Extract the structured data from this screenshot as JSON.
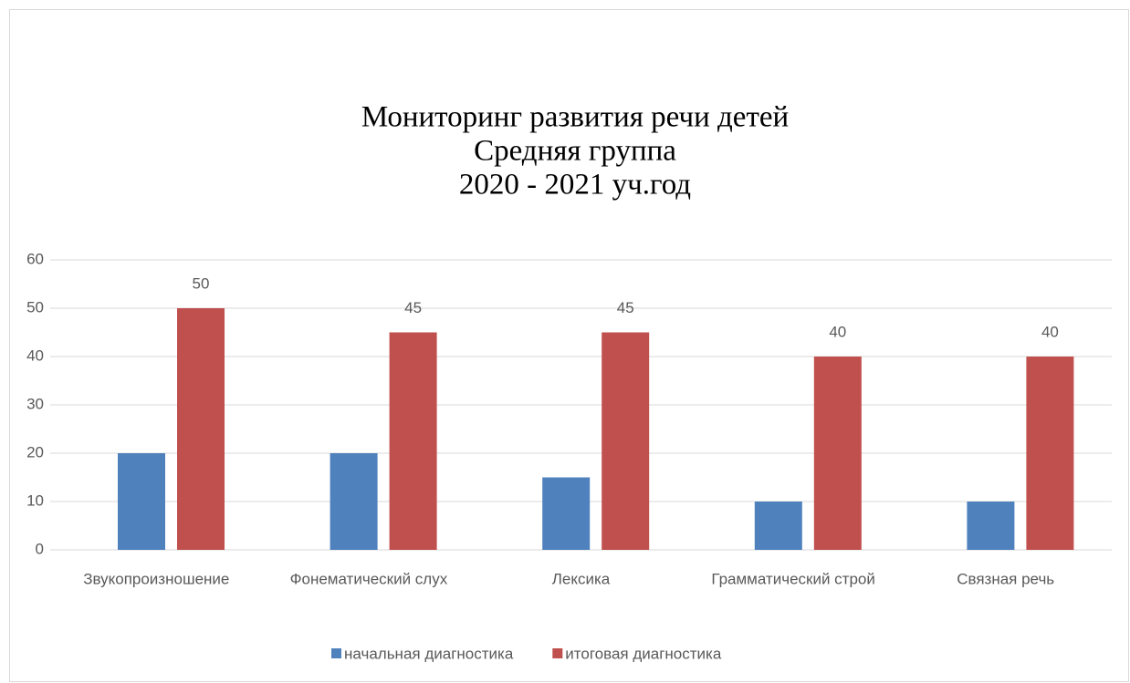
{
  "chart_data": {
    "type": "bar",
    "title": [
      "Мониторинг развития речи детей",
      "Средняя группа",
      "2020 - 2021 уч.год"
    ],
    "categories": [
      "Звукопроизношение",
      "Фонематический слух",
      "Лексика",
      "Грамматический строй",
      "Связная речь"
    ],
    "series": [
      {
        "name": "начальная диагностика",
        "color": "#4f81bd",
        "values": [
          20,
          20,
          15,
          10,
          10
        ]
      },
      {
        "name": "итоговая диагностика",
        "color": "#c0504d",
        "values": [
          50,
          45,
          45,
          40,
          40
        ],
        "data_labels": true
      }
    ],
    "ylim": [
      0,
      60
    ],
    "yticks": [
      0,
      10,
      20,
      30,
      40,
      50,
      60
    ],
    "grid": true,
    "legend": "bottom"
  }
}
